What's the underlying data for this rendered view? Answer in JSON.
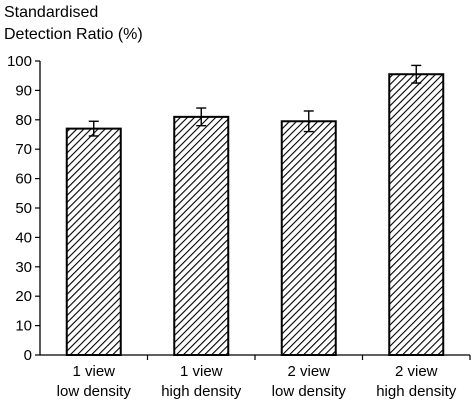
{
  "chart_data": {
    "type": "bar",
    "ylabel_lines": [
      "Standardised",
      "Detection Ratio (%)"
    ],
    "xlabel": "",
    "ylim": [
      0,
      100
    ],
    "yticks": [
      0,
      10,
      20,
      30,
      40,
      50,
      60,
      70,
      80,
      90,
      100
    ],
    "categories": [
      [
        "1 view",
        "low density"
      ],
      [
        "1 view",
        "high density"
      ],
      [
        "2 view",
        "low density"
      ],
      [
        "2 view",
        "high density"
      ]
    ],
    "values": [
      77,
      81,
      79.5,
      95.5
    ],
    "errors": [
      2.5,
      3,
      3.5,
      3
    ],
    "grid": false,
    "bar_fill": "hatched",
    "colors": {
      "axis": "#000000",
      "bar_stroke": "#000000",
      "hatch": "#000000",
      "bar_bg": "#ffffff"
    }
  }
}
